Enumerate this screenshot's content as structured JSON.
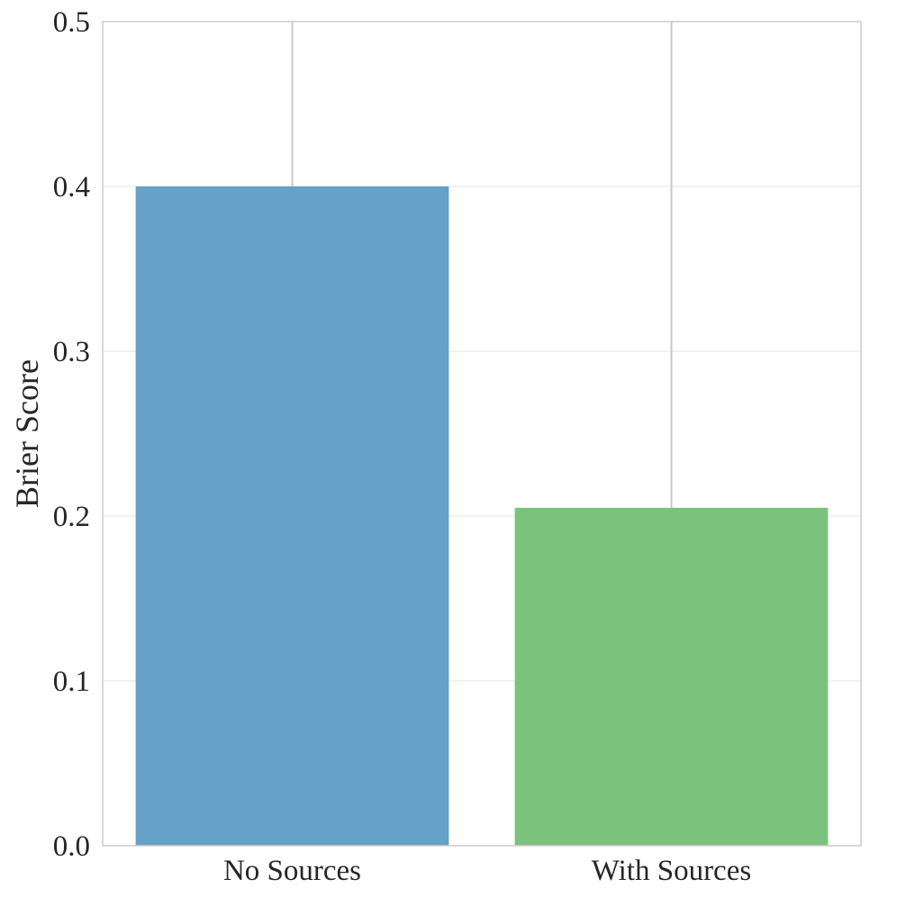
{
  "chart_data": {
    "type": "bar",
    "categories": [
      "No Sources",
      "With Sources"
    ],
    "values": [
      0.4,
      0.205
    ],
    "error_bars": {
      "lower": [
        0.4,
        0.205
      ],
      "upper": [
        0.5,
        0.5
      ]
    },
    "colors": [
      "#65a1c8",
      "#7bc27c"
    ],
    "title": "",
    "xlabel": "",
    "ylabel": "Brier Score",
    "ylim": [
      0,
      0.5
    ],
    "yticks": [
      0.0,
      0.1,
      0.2,
      0.3,
      0.4,
      0.5
    ],
    "ytick_labels": [
      "0.0",
      "0.1",
      "0.2",
      "0.3",
      "0.4",
      "0.5"
    ],
    "grid": "y",
    "legend": "none"
  }
}
